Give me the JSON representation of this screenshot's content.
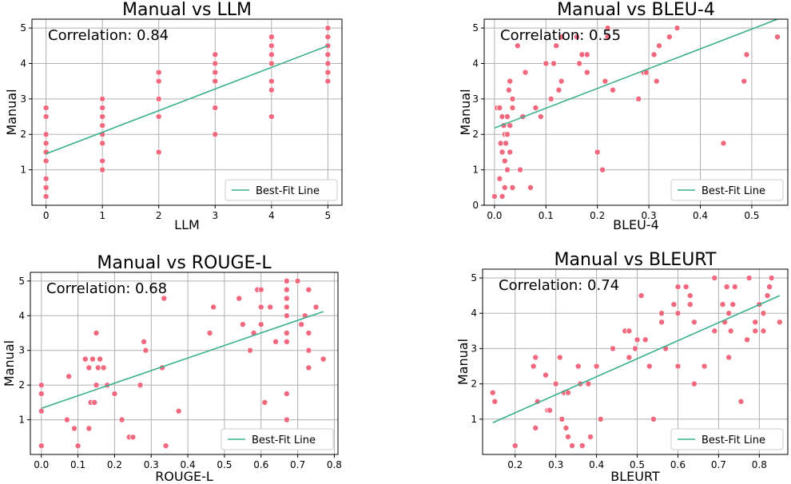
{
  "colors": {
    "points": "#f0697e",
    "fit_line": "#3aaf8f"
  },
  "legend_label": "Best-Fit Line",
  "chart_data": [
    {
      "type": "scatter",
      "title": "Manual vs LLM",
      "xlabel": "LLM",
      "ylabel": "Manual",
      "annotation": "Correlation: 0.84",
      "correlation": 0.84,
      "xlim": [
        -0.25,
        5.25
      ],
      "ylim": [
        0,
        5.25
      ],
      "xticks": [
        "0",
        "1",
        "2",
        "3",
        "4",
        "5"
      ],
      "xtick_values": [
        0,
        1,
        2,
        3,
        4,
        5
      ],
      "yticks": [
        "1",
        "2",
        "3",
        "4",
        "5"
      ],
      "ytick_values": [
        1,
        2,
        3,
        4,
        5
      ],
      "grid": true,
      "legend_position": "lower right",
      "fit_line": [
        [
          0,
          1.45
        ],
        [
          5,
          4.5
        ]
      ],
      "points": [
        [
          0,
          0.25
        ],
        [
          0,
          0.5
        ],
        [
          0,
          0.75
        ],
        [
          0,
          1.25
        ],
        [
          0,
          1.5
        ],
        [
          0,
          1.75
        ],
        [
          0,
          2
        ],
        [
          0,
          2.5
        ],
        [
          0,
          2.75
        ],
        [
          1,
          1
        ],
        [
          1,
          1.25
        ],
        [
          1,
          1.75
        ],
        [
          1,
          2
        ],
        [
          1,
          2.25
        ],
        [
          1,
          2.5
        ],
        [
          1,
          2.75
        ],
        [
          1,
          3
        ],
        [
          2,
          1.5
        ],
        [
          2,
          2.5
        ],
        [
          2,
          3
        ],
        [
          2,
          3.5
        ],
        [
          2,
          3.75
        ],
        [
          3,
          2
        ],
        [
          3,
          2.75
        ],
        [
          3,
          3.5
        ],
        [
          3,
          3.75
        ],
        [
          3,
          4
        ],
        [
          3,
          4.25
        ],
        [
          4,
          2.5
        ],
        [
          4,
          3.25
        ],
        [
          4,
          3.5
        ],
        [
          4,
          4
        ],
        [
          4,
          4.25
        ],
        [
          4,
          4.5
        ],
        [
          4,
          4.75
        ],
        [
          5,
          3.5
        ],
        [
          5,
          3.75
        ],
        [
          5,
          4
        ],
        [
          5,
          4.25
        ],
        [
          5,
          4.5
        ],
        [
          5,
          4.75
        ],
        [
          5,
          5
        ]
      ]
    },
    {
      "type": "scatter",
      "title": "Manual vs BLEU-4",
      "xlabel": "BLEU-4",
      "ylabel": "Manual",
      "annotation": "Correlation: 0.55",
      "correlation": 0.55,
      "xlim": [
        -0.02,
        0.57
      ],
      "ylim": [
        0,
        5.25
      ],
      "xticks": [
        "0.0",
        "0.1",
        "0.2",
        "0.3",
        "0.4",
        "0.5"
      ],
      "xtick_values": [
        0,
        0.1,
        0.2,
        0.3,
        0.4,
        0.5
      ],
      "yticks": [
        "0",
        "1",
        "2",
        "3",
        "4",
        "5"
      ],
      "ytick_values": [
        0,
        1,
        2,
        3,
        4,
        5
      ],
      "grid": true,
      "legend_position": "lower right",
      "fit_line": [
        [
          0,
          2.18
        ],
        [
          0.55,
          5.25
        ]
      ],
      "points": [
        [
          0,
          0.25
        ],
        [
          0.005,
          2.75
        ],
        [
          0.01,
          2.75
        ],
        [
          0.01,
          0.75
        ],
        [
          0.012,
          1.75
        ],
        [
          0.015,
          2.5
        ],
        [
          0.015,
          1.5
        ],
        [
          0.015,
          0.25
        ],
        [
          0.018,
          2.25
        ],
        [
          0.02,
          2
        ],
        [
          0.02,
          1.25
        ],
        [
          0.02,
          0.5
        ],
        [
          0.022,
          1.75
        ],
        [
          0.025,
          2.5
        ],
        [
          0.025,
          2
        ],
        [
          0.025,
          1
        ],
        [
          0.028,
          3.25
        ],
        [
          0.03,
          3.5
        ],
        [
          0.03,
          2.25
        ],
        [
          0.03,
          1.5
        ],
        [
          0.035,
          3
        ],
        [
          0.035,
          2.75
        ],
        [
          0.035,
          0.5
        ],
        [
          0.045,
          4.5
        ],
        [
          0.05,
          1
        ],
        [
          0.055,
          2.5
        ],
        [
          0.06,
          3.75
        ],
        [
          0.07,
          0.5
        ],
        [
          0.08,
          2.75
        ],
        [
          0.09,
          2.5
        ],
        [
          0.1,
          4
        ],
        [
          0.11,
          3
        ],
        [
          0.115,
          4
        ],
        [
          0.12,
          4.5
        ],
        [
          0.125,
          3.25
        ],
        [
          0.13,
          4.75
        ],
        [
          0.13,
          3.5
        ],
        [
          0.16,
          4.75
        ],
        [
          0.165,
          4
        ],
        [
          0.17,
          4.25
        ],
        [
          0.18,
          4.25
        ],
        [
          0.18,
          3.75
        ],
        [
          0.2,
          1.5
        ],
        [
          0.21,
          1
        ],
        [
          0.215,
          3.5
        ],
        [
          0.22,
          5
        ],
        [
          0.22,
          4.75
        ],
        [
          0.23,
          3.25
        ],
        [
          0.28,
          3
        ],
        [
          0.29,
          3.75
        ],
        [
          0.295,
          3.75
        ],
        [
          0.31,
          4.25
        ],
        [
          0.315,
          3.5
        ],
        [
          0.32,
          4.5
        ],
        [
          0.34,
          4.75
        ],
        [
          0.355,
          5
        ],
        [
          0.445,
          1.75
        ],
        [
          0.485,
          3.5
        ],
        [
          0.49,
          4.25
        ],
        [
          0.55,
          4.75
        ]
      ]
    },
    {
      "type": "scatter",
      "title": "Manual vs ROUGE-L",
      "xlabel": "ROUGE-L",
      "ylabel": "Manual",
      "annotation": "Correlation: 0.68",
      "correlation": 0.68,
      "xlim": [
        -0.03,
        0.81
      ],
      "ylim": [
        0,
        5.25
      ],
      "xticks": [
        "0.0",
        "0.1",
        "0.2",
        "0.3",
        "0.4",
        "0.5",
        "0.6",
        "0.7",
        "0.8"
      ],
      "xtick_values": [
        0,
        0.1,
        0.2,
        0.3,
        0.4,
        0.5,
        0.6,
        0.7,
        0.8
      ],
      "yticks": [
        "1",
        "2",
        "3",
        "4",
        "5"
      ],
      "ytick_values": [
        1,
        2,
        3,
        4,
        5
      ],
      "grid": true,
      "legend_position": "lower right",
      "fit_line": [
        [
          0,
          1.33
        ],
        [
          0.77,
          4.12
        ]
      ],
      "points": [
        [
          0,
          0.25
        ],
        [
          0,
          1.25
        ],
        [
          0,
          1.75
        ],
        [
          0,
          2
        ],
        [
          0.07,
          1
        ],
        [
          0.075,
          2.25
        ],
        [
          0.09,
          0.75
        ],
        [
          0.1,
          0.25
        ],
        [
          0.12,
          2.75
        ],
        [
          0.13,
          0.75
        ],
        [
          0.13,
          2.5
        ],
        [
          0.135,
          1.5
        ],
        [
          0.14,
          2.75
        ],
        [
          0.145,
          1.5
        ],
        [
          0.15,
          3.5
        ],
        [
          0.15,
          2
        ],
        [
          0.155,
          2.5
        ],
        [
          0.16,
          2.75
        ],
        [
          0.17,
          2.5
        ],
        [
          0.18,
          2
        ],
        [
          0.2,
          1.75
        ],
        [
          0.22,
          1
        ],
        [
          0.24,
          0.5
        ],
        [
          0.25,
          0.5
        ],
        [
          0.27,
          2
        ],
        [
          0.28,
          3.25
        ],
        [
          0.285,
          3
        ],
        [
          0.33,
          2.5
        ],
        [
          0.335,
          4.5
        ],
        [
          0.34,
          0.25
        ],
        [
          0.375,
          1.25
        ],
        [
          0.46,
          3.5
        ],
        [
          0.47,
          4.25
        ],
        [
          0.54,
          4.5
        ],
        [
          0.55,
          3.75
        ],
        [
          0.57,
          3
        ],
        [
          0.58,
          3.5
        ],
        [
          0.59,
          4.75
        ],
        [
          0.6,
          4.75
        ],
        [
          0.6,
          4.25
        ],
        [
          0.6,
          3.75
        ],
        [
          0.61,
          1.5
        ],
        [
          0.625,
          4.25
        ],
        [
          0.64,
          3.25
        ],
        [
          0.67,
          5
        ],
        [
          0.67,
          4.75
        ],
        [
          0.67,
          4.5
        ],
        [
          0.67,
          4.25
        ],
        [
          0.67,
          4
        ],
        [
          0.67,
          3.5
        ],
        [
          0.67,
          3.25
        ],
        [
          0.67,
          1.75
        ],
        [
          0.67,
          1
        ],
        [
          0.7,
          5
        ],
        [
          0.71,
          3.75
        ],
        [
          0.72,
          4
        ],
        [
          0.73,
          4.75
        ],
        [
          0.73,
          3.5
        ],
        [
          0.73,
          3
        ],
        [
          0.73,
          2.5
        ],
        [
          0.75,
          4.25
        ],
        [
          0.77,
          2.75
        ]
      ]
    },
    {
      "type": "scatter",
      "title": "Manual vs BLEURT",
      "xlabel": "BLEURT",
      "ylabel": "Manual",
      "annotation": "Correlation: 0.74",
      "correlation": 0.74,
      "xlim": [
        0.12,
        0.87
      ],
      "ylim": [
        0,
        5.25
      ],
      "xticks": [
        "0.2",
        "0.3",
        "0.4",
        "0.5",
        "0.6",
        "0.7",
        "0.8"
      ],
      "xtick_values": [
        0.2,
        0.3,
        0.4,
        0.5,
        0.6,
        0.7,
        0.8
      ],
      "yticks": [
        "1",
        "2",
        "3",
        "4",
        "5"
      ],
      "ytick_values": [
        1,
        2,
        3,
        4,
        5
      ],
      "grid": true,
      "legend_position": "lower right",
      "fit_line": [
        [
          0.145,
          0.9
        ],
        [
          0.85,
          4.5
        ]
      ],
      "points": [
        [
          0.145,
          1.75
        ],
        [
          0.15,
          1.5
        ],
        [
          0.2,
          0.25
        ],
        [
          0.245,
          2.5
        ],
        [
          0.25,
          2.75
        ],
        [
          0.25,
          0.75
        ],
        [
          0.255,
          1.5
        ],
        [
          0.275,
          2.25
        ],
        [
          0.28,
          1.25
        ],
        [
          0.285,
          1.25
        ],
        [
          0.3,
          2
        ],
        [
          0.31,
          2.75
        ],
        [
          0.315,
          1
        ],
        [
          0.32,
          1.75
        ],
        [
          0.325,
          0.75
        ],
        [
          0.33,
          1.75
        ],
        [
          0.33,
          0.5
        ],
        [
          0.34,
          0.25
        ],
        [
          0.355,
          2.5
        ],
        [
          0.36,
          2
        ],
        [
          0.365,
          0.25
        ],
        [
          0.38,
          2
        ],
        [
          0.385,
          0.5
        ],
        [
          0.4,
          2.5
        ],
        [
          0.41,
          1
        ],
        [
          0.44,
          3
        ],
        [
          0.47,
          3.5
        ],
        [
          0.48,
          3.5
        ],
        [
          0.48,
          2.75
        ],
        [
          0.495,
          3
        ],
        [
          0.5,
          3.25
        ],
        [
          0.51,
          4.5
        ],
        [
          0.52,
          3.25
        ],
        [
          0.53,
          2.5
        ],
        [
          0.54,
          1
        ],
        [
          0.56,
          4
        ],
        [
          0.56,
          3.75
        ],
        [
          0.57,
          3
        ],
        [
          0.59,
          4.25
        ],
        [
          0.6,
          4.75
        ],
        [
          0.6,
          4
        ],
        [
          0.6,
          2.5
        ],
        [
          0.62,
          4.75
        ],
        [
          0.63,
          4.5
        ],
        [
          0.63,
          4.25
        ],
        [
          0.64,
          3.75
        ],
        [
          0.64,
          2
        ],
        [
          0.665,
          2.5
        ],
        [
          0.69,
          5
        ],
        [
          0.69,
          3.5
        ],
        [
          0.71,
          4.25
        ],
        [
          0.715,
          3.75
        ],
        [
          0.72,
          4.75
        ],
        [
          0.725,
          4
        ],
        [
          0.725,
          2.75
        ],
        [
          0.73,
          3.5
        ],
        [
          0.735,
          4.25
        ],
        [
          0.74,
          4.75
        ],
        [
          0.755,
          1.5
        ],
        [
          0.77,
          3.25
        ],
        [
          0.775,
          5
        ],
        [
          0.79,
          3.5
        ],
        [
          0.79,
          3.75
        ],
        [
          0.8,
          4.25
        ],
        [
          0.81,
          4
        ],
        [
          0.81,
          3.5
        ],
        [
          0.82,
          4.5
        ],
        [
          0.825,
          4.75
        ],
        [
          0.83,
          5
        ],
        [
          0.85,
          3.75
        ]
      ]
    }
  ]
}
